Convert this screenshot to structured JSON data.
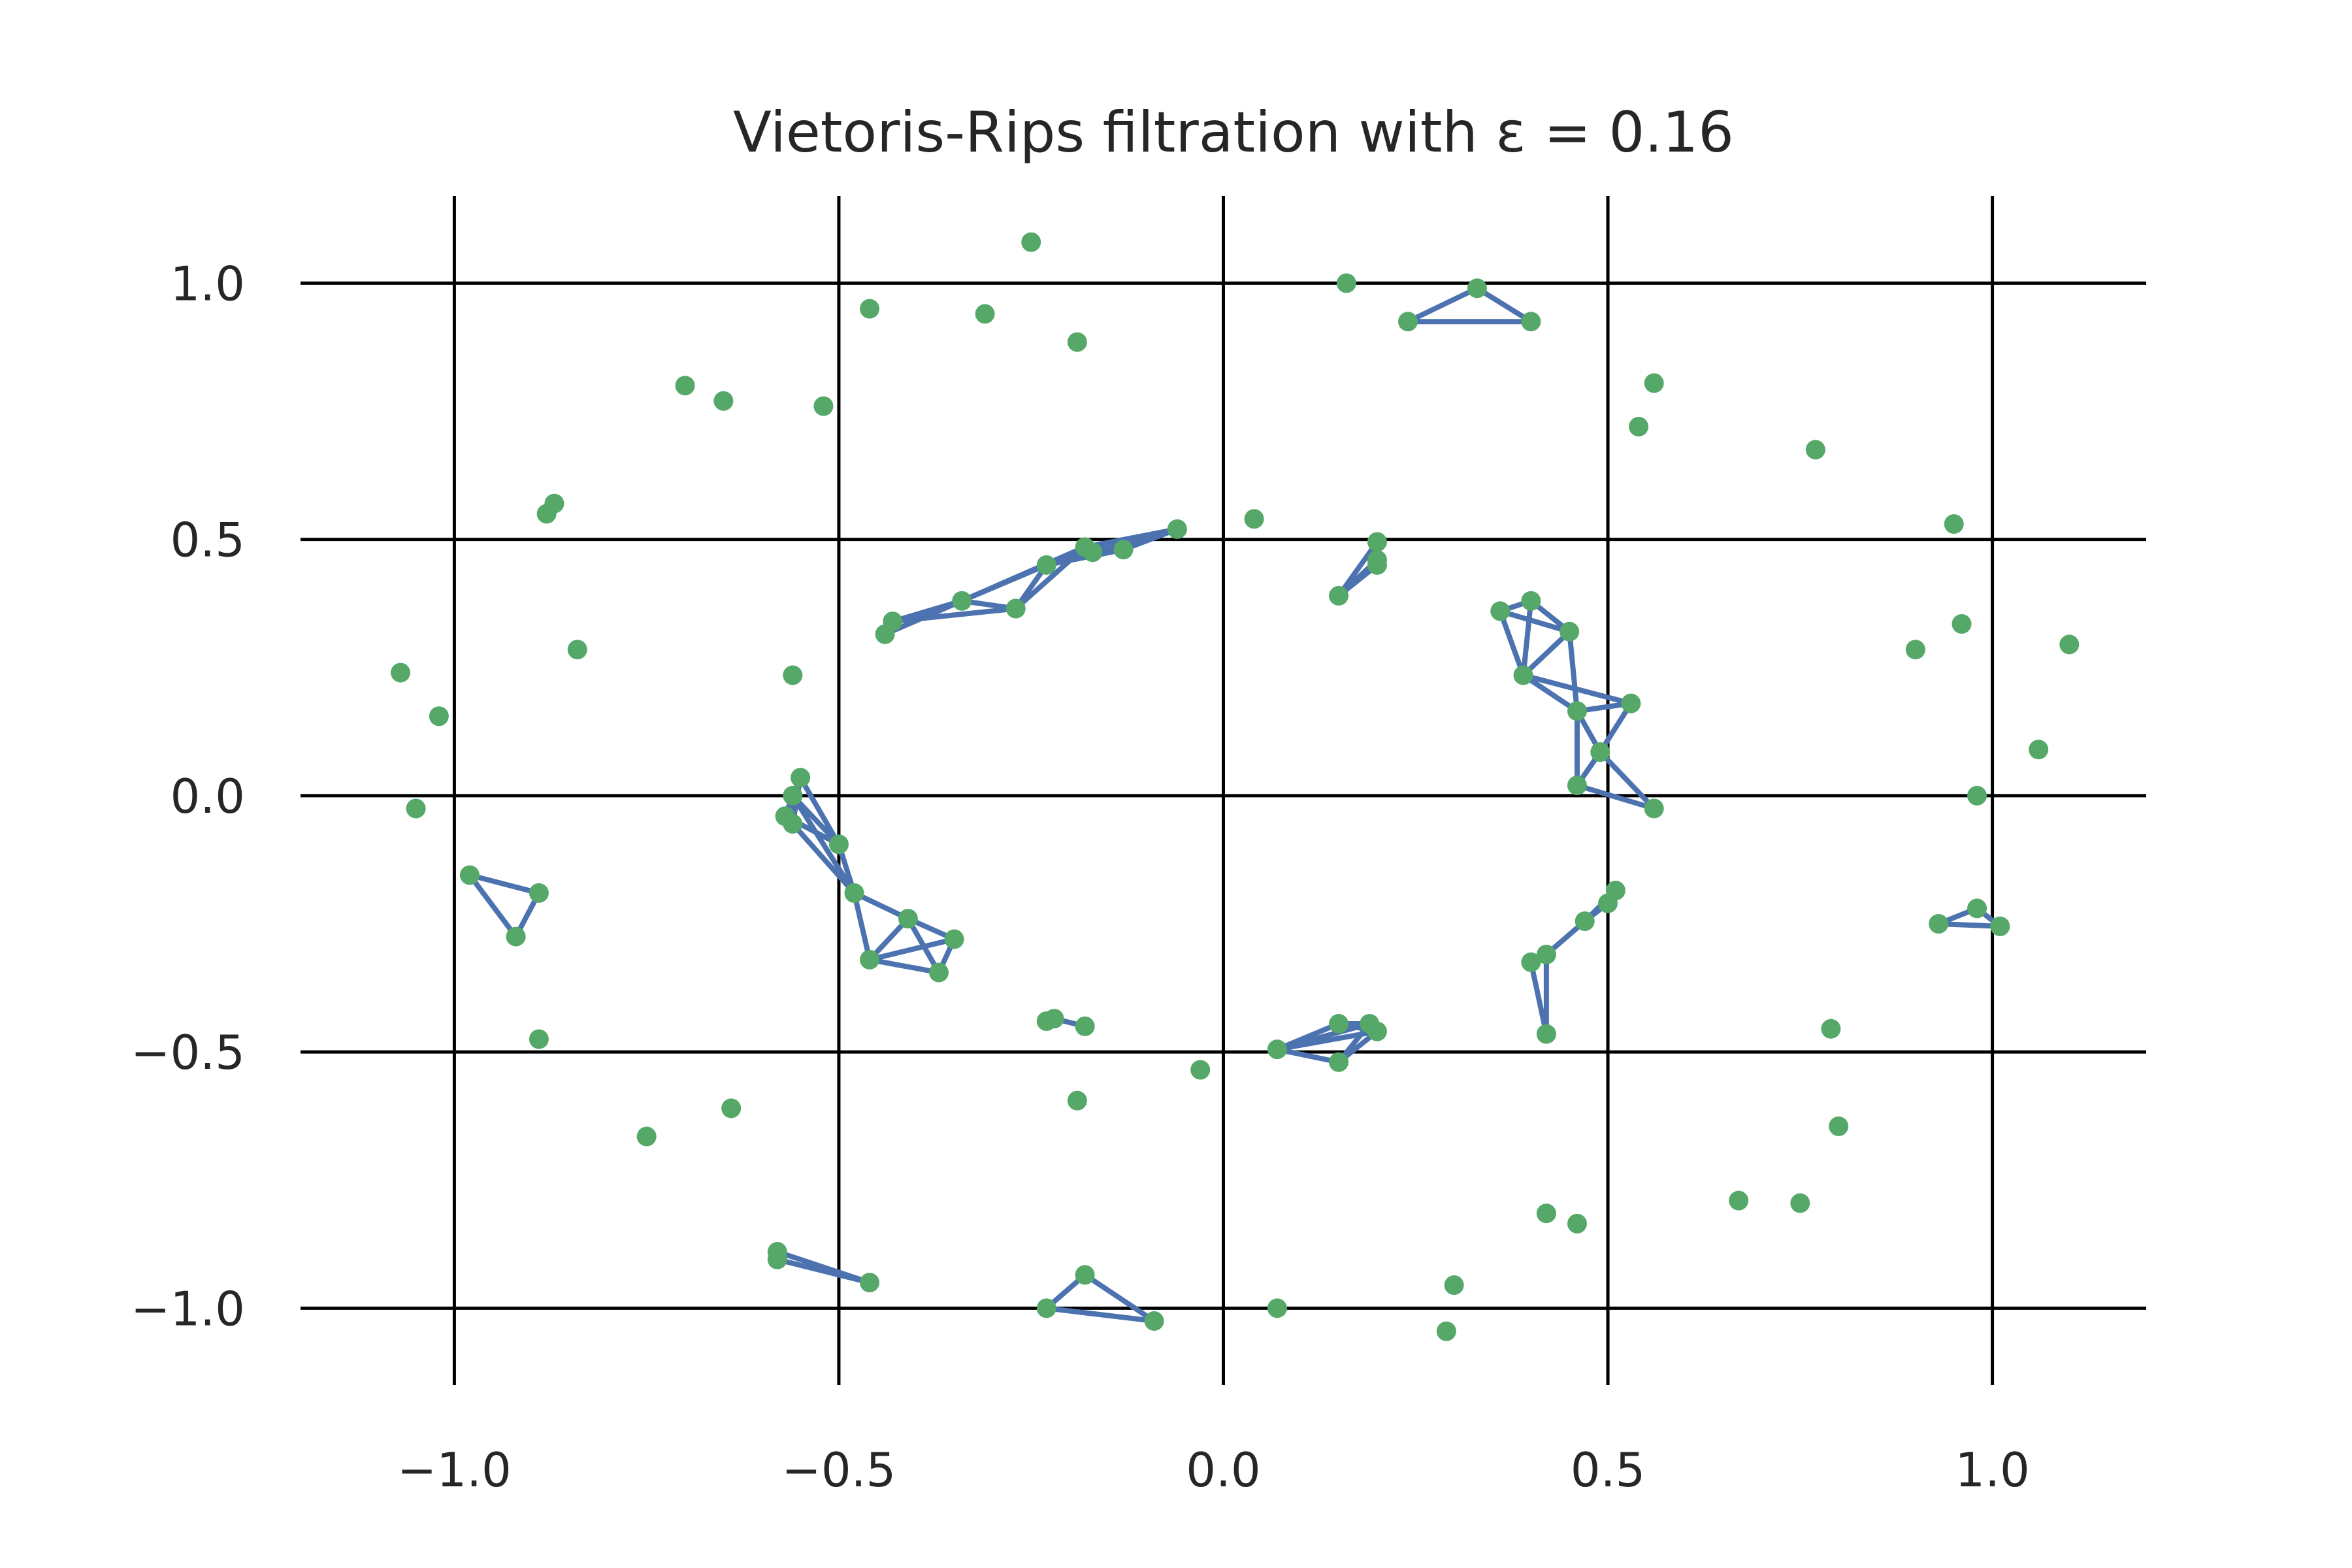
{
  "chart_data": {
    "type": "scatter",
    "title": "Vietoris-Rips filtration with ε = 0.16",
    "xlabel": "",
    "ylabel": "",
    "xlim": [
      -1.2,
      1.2
    ],
    "ylim": [
      -1.15,
      1.17
    ],
    "grid": true,
    "xticks": [
      -1.0,
      -0.5,
      0.0,
      0.5,
      1.0
    ],
    "yticks": [
      1.0,
      0.5,
      0.0,
      -0.5,
      -1.0
    ],
    "xtick_labels": [
      "−1.0",
      "−0.5",
      "0.0",
      "0.5",
      "1.0"
    ],
    "ytick_labels": [
      "1.0",
      "0.5",
      "0.0",
      "−0.5",
      "−1.0"
    ],
    "epsilon": 0.16,
    "point_color": "#55a868",
    "edge_color": "#4c72b0",
    "points": [
      [
        -0.25,
        1.08
      ],
      [
        0.16,
        1.0
      ],
      [
        0.33,
        0.99
      ],
      [
        0.24,
        0.925
      ],
      [
        0.4,
        0.925
      ],
      [
        -0.46,
        0.95
      ],
      [
        -0.31,
        0.94
      ],
      [
        -0.19,
        0.885
      ],
      [
        -0.7,
        0.8
      ],
      [
        -0.65,
        0.77
      ],
      [
        -0.52,
        0.76
      ],
      [
        0.56,
        0.805
      ],
      [
        0.54,
        0.72
      ],
      [
        0.77,
        0.675
      ],
      [
        -0.87,
        0.57
      ],
      [
        -0.88,
        0.55
      ],
      [
        0.04,
        0.54
      ],
      [
        -0.06,
        0.52
      ],
      [
        -0.18,
        0.485
      ],
      [
        -0.17,
        0.475
      ],
      [
        -0.13,
        0.48
      ],
      [
        -0.23,
        0.45
      ],
      [
        -0.34,
        0.38
      ],
      [
        -0.27,
        0.365
      ],
      [
        -0.43,
        0.34
      ],
      [
        -0.44,
        0.315
      ],
      [
        0.2,
        0.495
      ],
      [
        0.2,
        0.46
      ],
      [
        0.2,
        0.45
      ],
      [
        0.15,
        0.39
      ],
      [
        0.95,
        0.53
      ],
      [
        0.96,
        0.335
      ],
      [
        1.1,
        0.295
      ],
      [
        0.9,
        0.285
      ],
      [
        0.36,
        0.36
      ],
      [
        0.4,
        0.38
      ],
      [
        0.45,
        0.32
      ],
      [
        0.39,
        0.235
      ],
      [
        0.46,
        0.165
      ],
      [
        0.53,
        0.18
      ],
      [
        0.49,
        0.085
      ],
      [
        0.46,
        0.02
      ],
      [
        0.56,
        -0.025
      ],
      [
        -1.07,
        0.24
      ],
      [
        -1.02,
        0.155
      ],
      [
        -0.84,
        0.285
      ],
      [
        -0.56,
        0.235
      ],
      [
        1.06,
        0.09
      ],
      [
        0.98,
        0.0
      ],
      [
        -1.05,
        -0.025
      ],
      [
        -0.55,
        0.035
      ],
      [
        -0.56,
        0.0
      ],
      [
        -0.57,
        -0.04
      ],
      [
        -0.56,
        -0.055
      ],
      [
        -0.5,
        -0.095
      ],
      [
        -0.48,
        -0.19
      ],
      [
        -0.41,
        -0.24
      ],
      [
        -0.35,
        -0.28
      ],
      [
        -0.46,
        -0.32
      ],
      [
        -0.37,
        -0.345
      ],
      [
        -0.98,
        -0.155
      ],
      [
        -0.89,
        -0.19
      ],
      [
        -0.92,
        -0.275
      ],
      [
        0.51,
        -0.185
      ],
      [
        0.5,
        -0.21
      ],
      [
        0.47,
        -0.245
      ],
      [
        0.42,
        -0.31
      ],
      [
        0.4,
        -0.325
      ],
      [
        0.42,
        -0.465
      ],
      [
        0.93,
        -0.25
      ],
      [
        0.98,
        -0.22
      ],
      [
        1.01,
        -0.255
      ],
      [
        -0.89,
        -0.475
      ],
      [
        0.79,
        -0.455
      ],
      [
        -0.23,
        -0.44
      ],
      [
        -0.22,
        -0.435
      ],
      [
        -0.18,
        -0.45
      ],
      [
        0.07,
        -0.495
      ],
      [
        0.15,
        -0.445
      ],
      [
        0.19,
        -0.445
      ],
      [
        0.2,
        -0.46
      ],
      [
        0.15,
        -0.52
      ],
      [
        -0.03,
        -0.535
      ],
      [
        -0.19,
        -0.595
      ],
      [
        -0.64,
        -0.61
      ],
      [
        -0.75,
        -0.665
      ],
      [
        0.8,
        -0.645
      ],
      [
        0.67,
        -0.79
      ],
      [
        0.75,
        -0.795
      ],
      [
        0.42,
        -0.815
      ],
      [
        0.46,
        -0.835
      ],
      [
        -0.58,
        -0.89
      ],
      [
        -0.58,
        -0.905
      ],
      [
        -0.46,
        -0.95
      ],
      [
        -0.18,
        -0.935
      ],
      [
        -0.23,
        -1.0
      ],
      [
        -0.09,
        -1.025
      ],
      [
        0.07,
        -1.0
      ],
      [
        0.3,
        -0.955
      ],
      [
        0.29,
        -1.045
      ]
    ],
    "edges": [
      [
        [
          0.33,
          0.99
        ],
        [
          0.24,
          0.925
        ]
      ],
      [
        [
          0.33,
          0.99
        ],
        [
          0.4,
          0.925
        ]
      ],
      [
        [
          0.24,
          0.925
        ],
        [
          0.4,
          0.925
        ]
      ],
      [
        [
          -0.06,
          0.52
        ],
        [
          -0.18,
          0.485
        ]
      ],
      [
        [
          -0.06,
          0.52
        ],
        [
          -0.17,
          0.475
        ]
      ],
      [
        [
          -0.06,
          0.52
        ],
        [
          -0.13,
          0.48
        ]
      ],
      [
        [
          -0.18,
          0.485
        ],
        [
          -0.17,
          0.475
        ]
      ],
      [
        [
          -0.18,
          0.485
        ],
        [
          -0.13,
          0.48
        ]
      ],
      [
        [
          -0.17,
          0.475
        ],
        [
          -0.13,
          0.48
        ]
      ],
      [
        [
          -0.18,
          0.485
        ],
        [
          -0.23,
          0.45
        ]
      ],
      [
        [
          -0.17,
          0.475
        ],
        [
          -0.23,
          0.45
        ]
      ],
      [
        [
          -0.13,
          0.48
        ],
        [
          -0.23,
          0.45
        ]
      ],
      [
        [
          -0.18,
          0.485
        ],
        [
          -0.34,
          0.38
        ]
      ],
      [
        [
          -0.23,
          0.45
        ],
        [
          -0.34,
          0.38
        ]
      ],
      [
        [
          -0.23,
          0.45
        ],
        [
          -0.27,
          0.365
        ]
      ],
      [
        [
          -0.18,
          0.485
        ],
        [
          -0.27,
          0.365
        ]
      ],
      [
        [
          -0.34,
          0.38
        ],
        [
          -0.27,
          0.365
        ]
      ],
      [
        [
          -0.34,
          0.38
        ],
        [
          -0.43,
          0.34
        ]
      ],
      [
        [
          -0.34,
          0.38
        ],
        [
          -0.44,
          0.315
        ]
      ],
      [
        [
          -0.43,
          0.34
        ],
        [
          -0.44,
          0.315
        ]
      ],
      [
        [
          -0.27,
          0.365
        ],
        [
          -0.43,
          0.34
        ]
      ],
      [
        [
          0.2,
          0.495
        ],
        [
          0.15,
          0.39
        ]
      ],
      [
        [
          0.2,
          0.46
        ],
        [
          0.15,
          0.39
        ]
      ],
      [
        [
          0.2,
          0.45
        ],
        [
          0.15,
          0.39
        ]
      ],
      [
        [
          0.2,
          0.495
        ],
        [
          0.2,
          0.45
        ]
      ],
      [
        [
          0.36,
          0.36
        ],
        [
          0.4,
          0.38
        ]
      ],
      [
        [
          0.36,
          0.36
        ],
        [
          0.45,
          0.32
        ]
      ],
      [
        [
          0.36,
          0.36
        ],
        [
          0.39,
          0.235
        ]
      ],
      [
        [
          0.4,
          0.38
        ],
        [
          0.45,
          0.32
        ]
      ],
      [
        [
          0.4,
          0.38
        ],
        [
          0.39,
          0.235
        ]
      ],
      [
        [
          0.45,
          0.32
        ],
        [
          0.39,
          0.235
        ]
      ],
      [
        [
          0.45,
          0.32
        ],
        [
          0.46,
          0.165
        ]
      ],
      [
        [
          0.39,
          0.235
        ],
        [
          0.46,
          0.165
        ]
      ],
      [
        [
          0.39,
          0.235
        ],
        [
          0.53,
          0.18
        ]
      ],
      [
        [
          0.46,
          0.165
        ],
        [
          0.53,
          0.18
        ]
      ],
      [
        [
          0.46,
          0.165
        ],
        [
          0.49,
          0.085
        ]
      ],
      [
        [
          0.53,
          0.18
        ],
        [
          0.49,
          0.085
        ]
      ],
      [
        [
          0.46,
          0.165
        ],
        [
          0.46,
          0.02
        ]
      ],
      [
        [
          0.49,
          0.085
        ],
        [
          0.46,
          0.02
        ]
      ],
      [
        [
          0.49,
          0.085
        ],
        [
          0.56,
          -0.025
        ]
      ],
      [
        [
          0.46,
          0.02
        ],
        [
          0.56,
          -0.025
        ]
      ],
      [
        [
          -0.55,
          0.035
        ],
        [
          -0.56,
          0.0
        ]
      ],
      [
        [
          -0.55,
          0.035
        ],
        [
          -0.56,
          -0.055
        ]
      ],
      [
        [
          -0.56,
          0.0
        ],
        [
          -0.57,
          -0.04
        ]
      ],
      [
        [
          -0.56,
          0.0
        ],
        [
          -0.56,
          -0.055
        ]
      ],
      [
        [
          -0.57,
          -0.04
        ],
        [
          -0.56,
          -0.055
        ]
      ],
      [
        [
          -0.56,
          0.0
        ],
        [
          -0.5,
          -0.095
        ]
      ],
      [
        [
          -0.55,
          0.035
        ],
        [
          -0.5,
          -0.095
        ]
      ],
      [
        [
          -0.57,
          -0.04
        ],
        [
          -0.5,
          -0.095
        ]
      ],
      [
        [
          -0.56,
          -0.055
        ],
        [
          -0.48,
          -0.19
        ]
      ],
      [
        [
          -0.56,
          0.0
        ],
        [
          -0.48,
          -0.19
        ]
      ],
      [
        [
          -0.5,
          -0.095
        ],
        [
          -0.48,
          -0.19
        ]
      ],
      [
        [
          -0.48,
          -0.19
        ],
        [
          -0.41,
          -0.24
        ]
      ],
      [
        [
          -0.48,
          -0.19
        ],
        [
          -0.46,
          -0.32
        ]
      ],
      [
        [
          -0.41,
          -0.24
        ],
        [
          -0.46,
          -0.32
        ]
      ],
      [
        [
          -0.41,
          -0.24
        ],
        [
          -0.35,
          -0.28
        ]
      ],
      [
        [
          -0.41,
          -0.24
        ],
        [
          -0.37,
          -0.345
        ]
      ],
      [
        [
          -0.35,
          -0.28
        ],
        [
          -0.46,
          -0.32
        ]
      ],
      [
        [
          -0.35,
          -0.28
        ],
        [
          -0.37,
          -0.345
        ]
      ],
      [
        [
          -0.46,
          -0.32
        ],
        [
          -0.37,
          -0.345
        ]
      ],
      [
        [
          -0.98,
          -0.155
        ],
        [
          -0.89,
          -0.19
        ]
      ],
      [
        [
          -0.98,
          -0.155
        ],
        [
          -0.92,
          -0.275
        ]
      ],
      [
        [
          -0.89,
          -0.19
        ],
        [
          -0.92,
          -0.275
        ]
      ],
      [
        [
          0.51,
          -0.185
        ],
        [
          0.5,
          -0.21
        ]
      ],
      [
        [
          0.51,
          -0.185
        ],
        [
          0.47,
          -0.245
        ]
      ],
      [
        [
          0.5,
          -0.21
        ],
        [
          0.47,
          -0.245
        ]
      ],
      [
        [
          0.47,
          -0.245
        ],
        [
          0.42,
          -0.31
        ]
      ],
      [
        [
          0.42,
          -0.31
        ],
        [
          0.4,
          -0.325
        ]
      ],
      [
        [
          0.42,
          -0.31
        ],
        [
          0.42,
          -0.465
        ]
      ],
      [
        [
          0.4,
          -0.325
        ],
        [
          0.42,
          -0.465
        ]
      ],
      [
        [
          0.93,
          -0.25
        ],
        [
          0.98,
          -0.22
        ]
      ],
      [
        [
          0.93,
          -0.25
        ],
        [
          1.01,
          -0.255
        ]
      ],
      [
        [
          0.98,
          -0.22
        ],
        [
          1.01,
          -0.255
        ]
      ],
      [
        [
          -0.23,
          -0.44
        ],
        [
          -0.22,
          -0.435
        ]
      ],
      [
        [
          -0.22,
          -0.435
        ],
        [
          -0.18,
          -0.45
        ]
      ],
      [
        [
          0.07,
          -0.495
        ],
        [
          0.15,
          -0.445
        ]
      ],
      [
        [
          0.07,
          -0.495
        ],
        [
          0.19,
          -0.445
        ]
      ],
      [
        [
          0.07,
          -0.495
        ],
        [
          0.2,
          -0.46
        ]
      ],
      [
        [
          0.07,
          -0.495
        ],
        [
          0.15,
          -0.52
        ]
      ],
      [
        [
          0.15,
          -0.445
        ],
        [
          0.19,
          -0.445
        ]
      ],
      [
        [
          0.15,
          -0.445
        ],
        [
          0.2,
          -0.46
        ]
      ],
      [
        [
          0.19,
          -0.445
        ],
        [
          0.2,
          -0.46
        ]
      ],
      [
        [
          0.15,
          -0.52
        ],
        [
          0.2,
          -0.46
        ]
      ],
      [
        [
          0.15,
          -0.52
        ],
        [
          0.19,
          -0.445
        ]
      ],
      [
        [
          -0.58,
          -0.89
        ],
        [
          -0.58,
          -0.905
        ]
      ],
      [
        [
          -0.58,
          -0.89
        ],
        [
          -0.46,
          -0.95
        ]
      ],
      [
        [
          -0.58,
          -0.905
        ],
        [
          -0.46,
          -0.95
        ]
      ],
      [
        [
          -0.18,
          -0.935
        ],
        [
          -0.23,
          -1.0
        ]
      ],
      [
        [
          -0.18,
          -0.935
        ],
        [
          -0.09,
          -1.025
        ]
      ],
      [
        [
          -0.23,
          -1.0
        ],
        [
          -0.09,
          -1.025
        ]
      ]
    ]
  }
}
